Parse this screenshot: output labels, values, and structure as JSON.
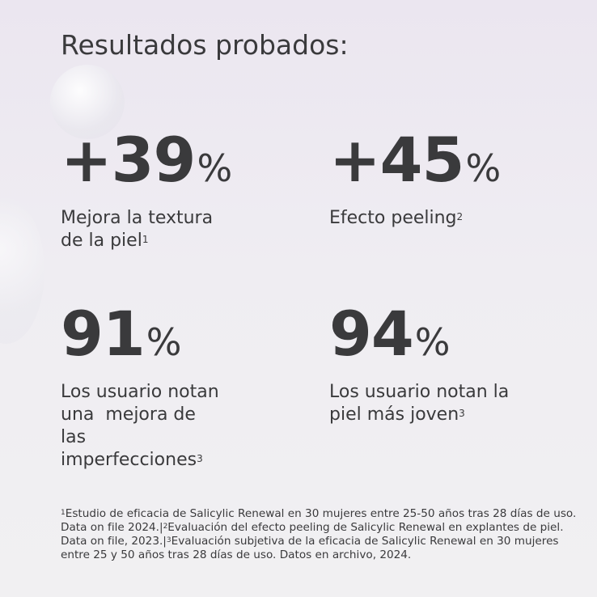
{
  "title": "Resultados probados:",
  "stats": [
    {
      "number": "+39",
      "unit": "%",
      "lines": [
        "Mejora la textura",
        "de la piel"
      ],
      "sup": "1"
    },
    {
      "number": "+45",
      "unit": "%",
      "lines": [
        "Efecto peeling"
      ],
      "sup": "2"
    },
    {
      "number": "91",
      "unit": "%",
      "lines": [
        "Los usuario notan",
        "una  mejora de",
        "las",
        "imperfecciones"
      ],
      "sup": "3"
    },
    {
      "number": "94",
      "unit": "%",
      "lines": [
        "Los usuario notan la",
        "piel más joven"
      ],
      "sup": "3"
    }
  ],
  "footnotes": [
    {
      "sup": "1",
      "text": "Estudio de eficacia de Salicylic Renewal en 30 mujeres entre 25-50 años tras 28 días de uso. Data on file 2024.|"
    },
    {
      "sup": "2",
      "text": "Evaluación del efecto peeling de Salicylic Renewal en explantes de piel. Data on file, 2023.|"
    },
    {
      "sup": "3",
      "text": "Evaluación subjetiva de la eficacia de Salicylic Renewal en 30 mujeres entre 25 y 50 años tras 28 días de uso. Datos en archivo, 2024."
    }
  ]
}
